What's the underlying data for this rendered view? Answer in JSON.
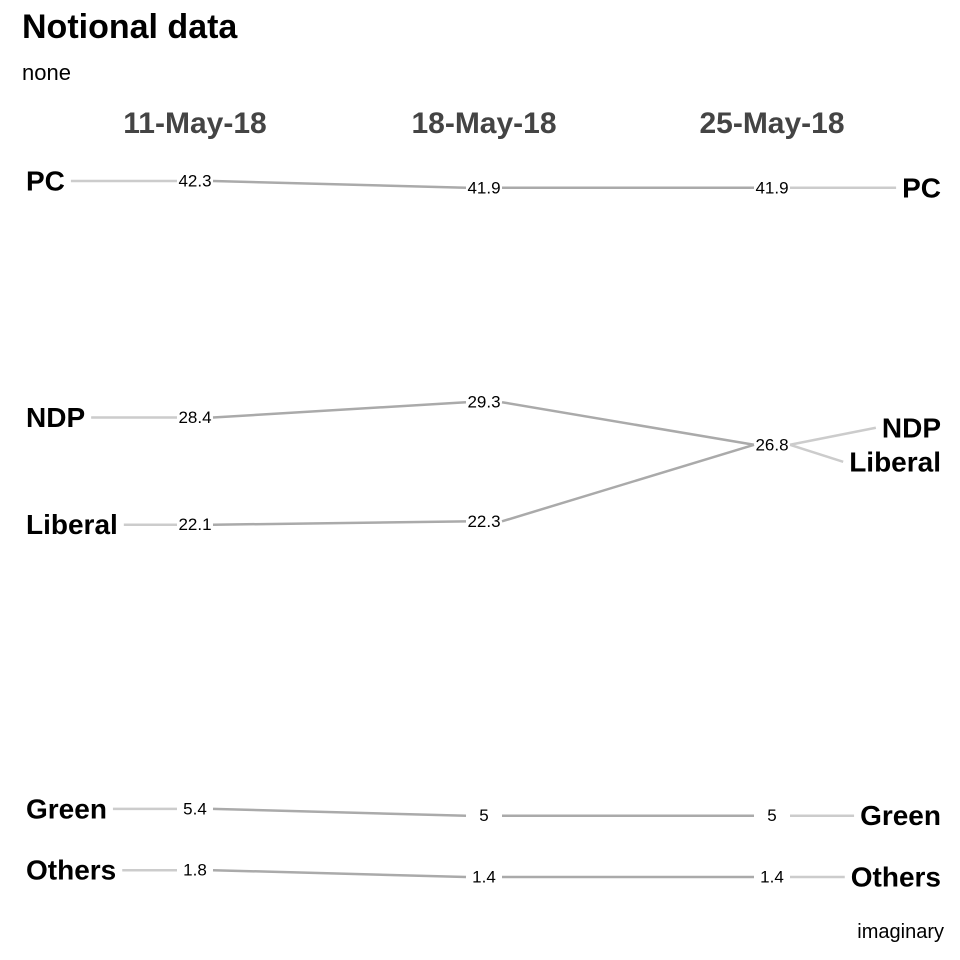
{
  "chart_data": {
    "type": "line",
    "title": "Notional data",
    "subtitle": "none",
    "caption": "imaginary",
    "x": [
      "11-May-18",
      "18-May-18",
      "25-May-18"
    ],
    "series": [
      {
        "name": "PC",
        "values": [
          42.3,
          41.9,
          41.9
        ],
        "value_labels": [
          "42.3",
          "41.9",
          "41.9"
        ]
      },
      {
        "name": "NDP",
        "values": [
          28.4,
          29.3,
          26.8
        ],
        "value_labels": [
          "28.4",
          "29.3",
          "26.8"
        ]
      },
      {
        "name": "Liberal",
        "values": [
          22.1,
          22.3,
          26.8
        ],
        "value_labels": [
          "22.1",
          "22.3",
          "26.8"
        ]
      },
      {
        "name": "Green",
        "values": [
          5.4,
          5,
          5
        ],
        "value_labels": [
          "5.4",
          "5",
          "5"
        ]
      },
      {
        "name": "Others",
        "values": [
          1.8,
          1.4,
          1.4
        ],
        "value_labels": [
          "1.8",
          "1.4",
          "1.4"
        ]
      }
    ],
    "colors": {
      "slope_line": "#aaaaaa",
      "label_leader": "#cccccc",
      "date_header": "#444444",
      "text": "#000000"
    },
    "grid": false,
    "legend": "none"
  }
}
